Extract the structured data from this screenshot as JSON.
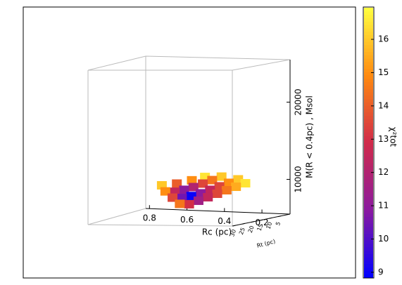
{
  "chart_data": {
    "type": "scatter3d",
    "xlabel": "Rc (pc)",
    "ylabel": "Rt (pc)",
    "zlabel": "M(R < 0.4pc) , Msol",
    "colorbar_label": "χ²tot",
    "xlim": [
      0.82,
      0.05
    ],
    "xticks": [
      0.8,
      0.6,
      0.4,
      0.2
    ],
    "ylim": [
      0,
      32
    ],
    "yticks": [
      30,
      25,
      20,
      15,
      10,
      5
    ],
    "zlim": [
      5500,
      25500
    ],
    "zticks": [
      10000,
      20000
    ],
    "clim": [
      8.85,
      16.95
    ],
    "cticks": [
      9,
      10,
      11,
      12,
      13,
      14,
      15,
      16
    ],
    "colormap": [
      "#0000ff",
      "#8a1aa0",
      "#d02a4a",
      "#ff8a10",
      "#ffff40"
    ],
    "x": [
      0.6,
      0.55,
      0.5,
      0.45,
      0.4,
      0.35,
      0.3,
      0.25,
      0.6,
      0.55,
      0.5,
      0.45,
      0.4,
      0.35,
      0.3,
      0.25,
      0.6,
      0.55,
      0.5,
      0.45,
      0.4,
      0.35,
      0.3,
      0.58,
      0.5,
      0.42,
      0.35
    ],
    "y": [
      4,
      4,
      4,
      4,
      4,
      4,
      4,
      4,
      8,
      8,
      8,
      8,
      8,
      8,
      8,
      8,
      12,
      12,
      12,
      12,
      12,
      12,
      12,
      16,
      16,
      16,
      16
    ],
    "z": [
      6500,
      6500,
      7000,
      7500,
      8000,
      8500,
      9000,
      9500,
      7500,
      7500,
      7800,
      8200,
      8700,
      9200,
      9700,
      10200,
      8500,
      8500,
      8800,
      9200,
      9700,
      10200,
      10700,
      9500,
      9800,
      10300,
      10800
    ],
    "c": [
      14.5,
      13,
      11.5,
      12.5,
      13.5,
      14.5,
      15.5,
      16.5,
      13.5,
      10.5,
      9,
      11,
      12.5,
      13.5,
      15,
      16,
      15,
      12.5,
      11,
      12,
      13.5,
      14.5,
      16,
      16,
      14,
      15,
      16.5
    ]
  }
}
